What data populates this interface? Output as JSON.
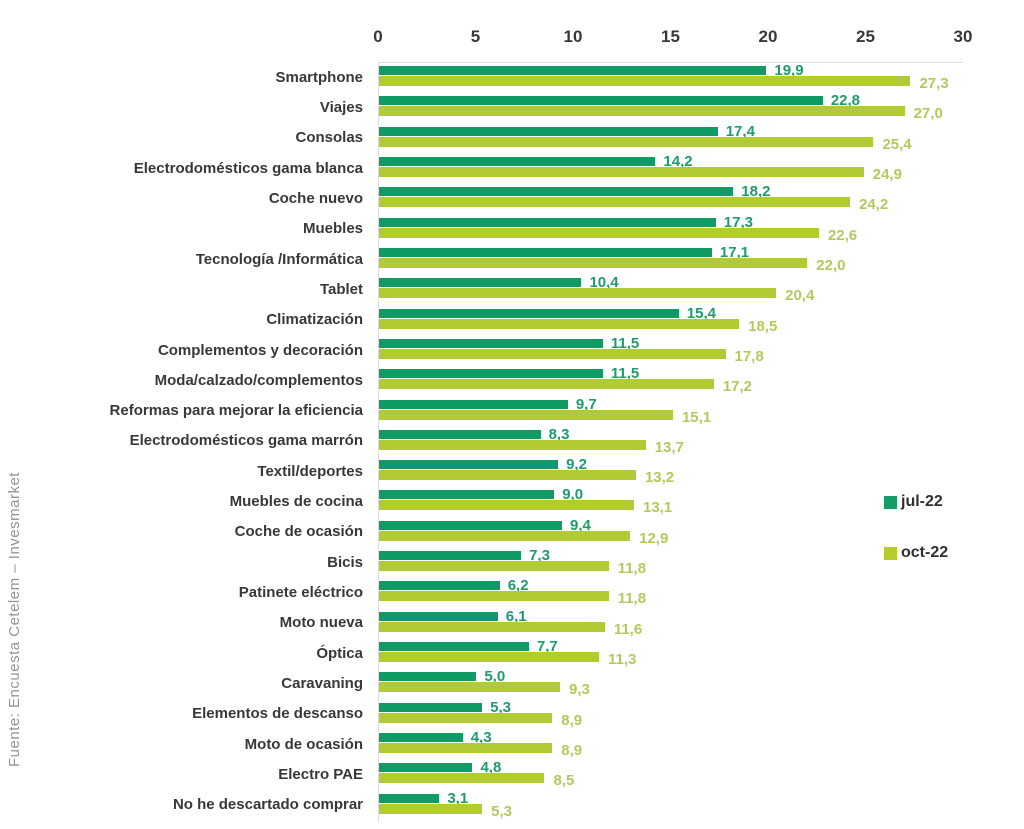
{
  "source": "Fuente: Encuesta Cetelem – Invesmarket",
  "legend": {
    "items": [
      {
        "label": "jul-22",
        "color": "#169c67"
      },
      {
        "label": "oct-22",
        "color": "#b6cc2d"
      }
    ]
  },
  "chart_data": {
    "type": "bar",
    "orientation": "horizontal",
    "title": "",
    "xlabel": "",
    "ylabel": "",
    "xlim": [
      0,
      30
    ],
    "axis_ticks": [
      0,
      5,
      10,
      15,
      20,
      25,
      30
    ],
    "grid": false,
    "legend_position": "right",
    "value_labels": true,
    "decimal_separator": ",",
    "categories": [
      "Smartphone",
      "Viajes",
      "Consolas",
      "Electrodomésticos gama blanca",
      "Coche nuevo",
      "Muebles",
      "Tecnología /Informática",
      "Tablet",
      "Climatización",
      "Complementos y decoración",
      "Moda/calzado/complementos",
      "Reformas para mejorar la eficiencia",
      "Electrodomésticos gama marrón",
      "Textil/deportes",
      "Muebles de cocina",
      "Coche de ocasión",
      "Bicis",
      "Patinete eléctrico",
      "Moto nueva",
      "Óptica",
      "Caravaning",
      "Elementos de descanso",
      "Moto de ocasión",
      "Electro PAE",
      "No he descartado comprar"
    ],
    "series": [
      {
        "name": "jul-22",
        "color": "#119b64",
        "label_color": "#1f9c68",
        "values": [
          19.9,
          22.8,
          17.4,
          14.2,
          18.2,
          17.3,
          17.1,
          10.4,
          15.4,
          11.5,
          11.5,
          9.7,
          8.3,
          9.2,
          9.0,
          9.4,
          7.3,
          6.2,
          6.1,
          7.7,
          5.0,
          5.3,
          4.3,
          4.8,
          3.1
        ],
        "display_labels": [
          "19,9",
          "22,8",
          "17,4",
          "14,2",
          "18,2",
          "17,3",
          "17,1",
          "10,4",
          "15,4",
          "11,5",
          "11,5",
          "9,7",
          "8,3",
          "9,2",
          "9,0",
          "9,4",
          "7,3",
          "6,2",
          "6,1",
          "7,7",
          "5,0",
          "5,3",
          "4,3",
          "4,8",
          "3,1"
        ]
      },
      {
        "name": "oct-22",
        "color": "#b1cc33",
        "label_color": "#b6c75f",
        "values": [
          27.3,
          27.0,
          25.4,
          24.9,
          24.2,
          22.6,
          22.0,
          20.4,
          18.5,
          17.8,
          17.2,
          15.1,
          13.7,
          13.2,
          13.1,
          12.9,
          11.8,
          11.8,
          11.6,
          11.3,
          9.3,
          8.9,
          8.9,
          8.5,
          5.3
        ],
        "display_labels": [
          "27,3",
          "27,0",
          "25,4",
          "24,9",
          "24,2",
          "22,6",
          "22,0",
          "20,4",
          "18,5",
          "17,8",
          "17,2",
          "15,1",
          "13,7",
          "13,2",
          "13,1",
          "12,9",
          "11,8",
          "11,8",
          "11,6",
          "11,3",
          "9,3",
          "8,9",
          "8,9",
          "8,5",
          "5,3"
        ]
      }
    ]
  }
}
